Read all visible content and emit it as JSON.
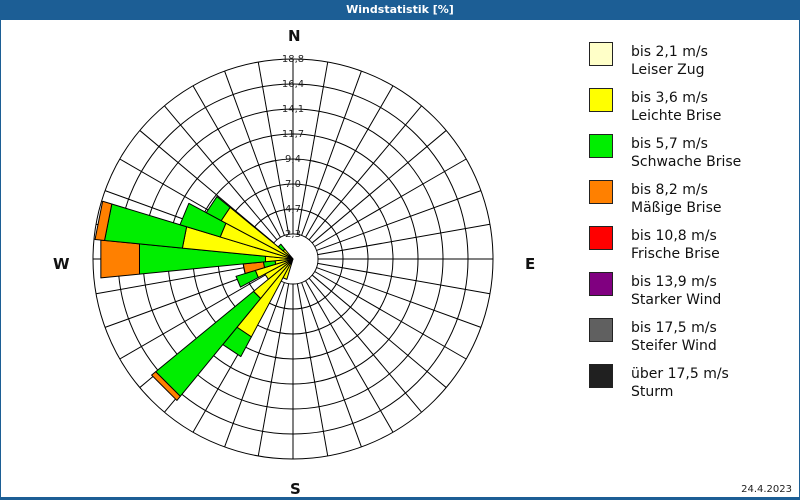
{
  "header": {
    "title": "Windstatistik [%]"
  },
  "compass": {
    "n": "N",
    "e": "E",
    "s": "S",
    "w": "W"
  },
  "footer": {
    "date": "24.4.2023"
  },
  "legend": [
    {
      "range": "bis 2,1 m/s",
      "label": "Leiser Zug",
      "color": "#ffffc8"
    },
    {
      "range": "bis 3,6 m/s",
      "label": "Leichte Brise",
      "color": "#ffff00"
    },
    {
      "range": "bis 5,7 m/s",
      "label": "Schwache Brise",
      "color": "#00ee00"
    },
    {
      "range": "bis 8,2 m/s",
      "label": "Mäßige Brise",
      "color": "#ff8000"
    },
    {
      "range": "bis 10,8 m/s",
      "label": "Frische Brise",
      "color": "#ff0000"
    },
    {
      "range": "bis 13,9 m/s",
      "label": "Starker Wind",
      "color": "#800080"
    },
    {
      "range": "bis 17,5 m/s",
      "label": "Steifer Wind",
      "color": "#606060"
    },
    {
      "range": "über 17,5 m/s",
      "label": "Sturm",
      "color": "#202020"
    }
  ],
  "chart_data": {
    "type": "wind_rose",
    "title": "Windstatistik [%]",
    "unit": "%",
    "radial_ticks": [
      "2,3",
      "4,7",
      "7,0",
      "9,4",
      "11,7",
      "14,1",
      "16,4",
      "18,8"
    ],
    "radial_tick_values": [
      2.35,
      4.7,
      7.05,
      9.4,
      11.75,
      14.1,
      16.45,
      18.8
    ],
    "rmax": 18.8,
    "sector_width_deg": 11.25,
    "series_names": [
      "bis 2,1 m/s",
      "bis 3,6 m/s",
      "bis 5,7 m/s",
      "bis 8,2 m/s",
      "bis 10,8 m/s",
      "bis 13,9 m/s",
      "bis 17,5 m/s",
      "über 17,5 m/s"
    ],
    "directions": [
      {
        "deg": 202.5,
        "values": [
          0.3,
          1.7,
          0,
          0,
          0,
          0,
          0,
          0
        ]
      },
      {
        "deg": 213.75,
        "values": [
          0.5,
          7.8,
          2.1,
          0,
          0,
          0,
          0,
          0
        ]
      },
      {
        "deg": 225,
        "values": [
          0.4,
          4.4,
          11.9,
          0.5,
          0,
          0,
          0,
          0
        ]
      },
      {
        "deg": 236.25,
        "values": [
          0.4,
          2.6,
          0,
          0,
          0,
          0,
          0,
          0
        ]
      },
      {
        "deg": 247.5,
        "values": [
          0.3,
          3.4,
          1.9,
          0,
          0,
          0,
          0,
          0
        ]
      },
      {
        "deg": 258.75,
        "values": [
          0.2,
          1.5,
          1.1,
          1.9,
          0,
          0,
          0,
          0
        ]
      },
      {
        "deg": 270,
        "values": [
          0.3,
          2.3,
          11.9,
          3.65,
          0,
          0,
          0,
          0
        ]
      },
      {
        "deg": 281.25,
        "values": [
          0.3,
          10.15,
          7.35,
          0.9,
          0,
          0,
          0,
          0
        ]
      },
      {
        "deg": 292.5,
        "values": [
          0.3,
          6.85,
          3.95,
          0,
          0,
          0,
          0,
          0
        ]
      },
      {
        "deg": 303.75,
        "values": [
          0.3,
          7.35,
          1.6,
          0,
          0,
          0,
          0,
          0
        ]
      },
      {
        "deg": 315,
        "values": [
          0.2,
          1.0,
          0.6,
          0,
          0,
          0,
          0,
          0
        ]
      }
    ],
    "legend_position": "right"
  }
}
